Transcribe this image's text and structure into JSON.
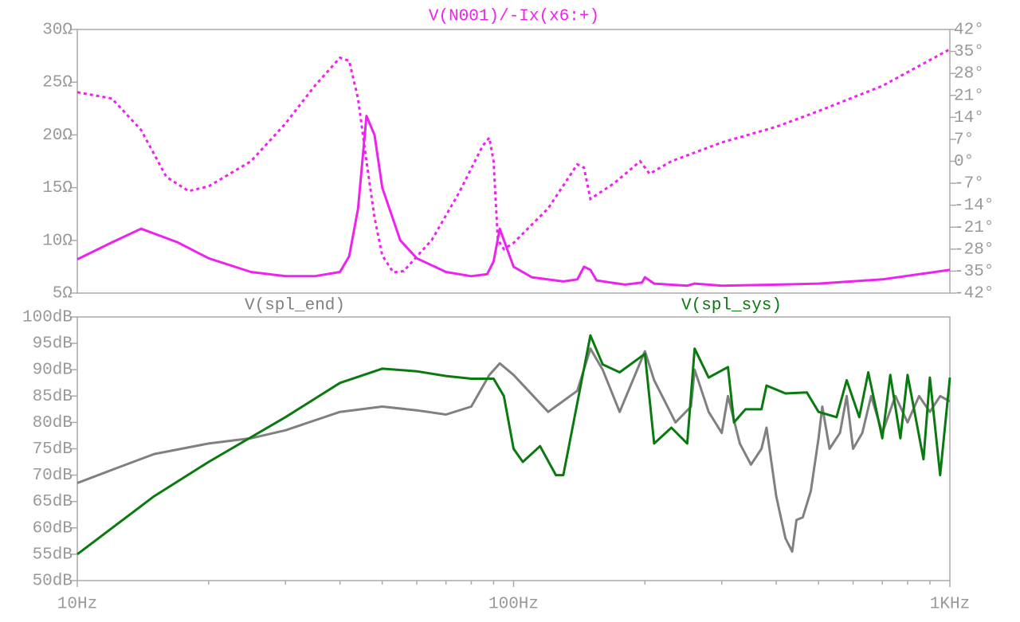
{
  "chart_data": [
    {
      "type": "line",
      "xscale": "log",
      "xlim": [
        10,
        1000
      ],
      "ylim": [
        5,
        30
      ],
      "yticks": [
        {
          "value": 5,
          "label": "5Ω"
        },
        {
          "value": 10,
          "label": "10Ω"
        },
        {
          "value": 15,
          "label": "15Ω"
        },
        {
          "value": 20,
          "label": "20Ω"
        },
        {
          "value": 25,
          "label": "25Ω"
        },
        {
          "value": 30,
          "label": "30Ω"
        }
      ],
      "y2lim": [
        -42,
        42
      ],
      "y2ticks": [
        {
          "value": -42,
          "label": "-42°"
        },
        {
          "value": -35,
          "label": "-35°"
        },
        {
          "value": -28,
          "label": "-28°"
        },
        {
          "value": -21,
          "label": "-21°"
        },
        {
          "value": -14,
          "label": "-14°"
        },
        {
          "value": -7,
          "label": "-7°"
        },
        {
          "value": 0,
          "label": "0°"
        },
        {
          "value": 7,
          "label": "7°"
        },
        {
          "value": 14,
          "label": "14°"
        },
        {
          "value": 21,
          "label": "21°"
        },
        {
          "value": 28,
          "label": "28°"
        },
        {
          "value": 35,
          "label": "35°"
        },
        {
          "value": 42,
          "label": "42°"
        }
      ],
      "series": [
        {
          "name": "V(N001)/-Ix(x6:+)",
          "color": "#ee22ee",
          "x": [
            10,
            12,
            14,
            17,
            20,
            25,
            30,
            35,
            40,
            42,
            44,
            46,
            48,
            50,
            55,
            60,
            70,
            80,
            87,
            90,
            93,
            96,
            100,
            110,
            130,
            140,
            145,
            150,
            155,
            180,
            197,
            200,
            210,
            250,
            260,
            300,
            400,
            500,
            700,
            1000
          ],
          "values": [
            8.2,
            9.8,
            11.1,
            9.8,
            8.3,
            7.0,
            6.6,
            6.6,
            7.0,
            8.5,
            13,
            21.8,
            20,
            15,
            10,
            8.3,
            7.0,
            6.6,
            6.8,
            8,
            11.1,
            9.5,
            7.5,
            6.5,
            6.1,
            6.3,
            7.5,
            7.2,
            6.2,
            5.8,
            6.0,
            6.5,
            5.9,
            5.7,
            5.9,
            5.7,
            5.8,
            5.9,
            6.3,
            7.2
          ],
          "phase_x": [
            10,
            12,
            14,
            16,
            18,
            20,
            25,
            30,
            35,
            40,
            42,
            44,
            46,
            48,
            50,
            53,
            56,
            65,
            75,
            85,
            88,
            90,
            92,
            95,
            100,
            120,
            140,
            145,
            150,
            170,
            195,
            200,
            205,
            230,
            300,
            400,
            500,
            700,
            1000
          ],
          "phase": [
            22,
            20,
            10,
            -5,
            -9.5,
            -8,
            0,
            12,
            24,
            33,
            32,
            20,
            0,
            -18,
            -30,
            -35.4,
            -35,
            -25,
            -10,
            5,
            7.5,
            0,
            -25,
            -28,
            -26,
            -15,
            -1,
            -2,
            -12,
            -7,
            0,
            -2,
            -4,
            0,
            6,
            11,
            16,
            24,
            35.7
          ]
        }
      ]
    },
    {
      "type": "line",
      "xscale": "log",
      "xlim": [
        10,
        1000
      ],
      "xticks": [
        {
          "value": 10,
          "label": "10Hz"
        },
        {
          "value": 100,
          "label": "100Hz"
        },
        {
          "value": 1000,
          "label": "1KHz"
        }
      ],
      "xminorticks": [
        20,
        30,
        40,
        50,
        60,
        70,
        80,
        90,
        200,
        300,
        400,
        500,
        600,
        700,
        800,
        900
      ],
      "ylim": [
        50,
        100
      ],
      "yticks": [
        {
          "value": 50,
          "label": "50dB"
        },
        {
          "value": 55,
          "label": "55dB"
        },
        {
          "value": 60,
          "label": "60dB"
        },
        {
          "value": 65,
          "label": "65dB"
        },
        {
          "value": 70,
          "label": "70dB"
        },
        {
          "value": 75,
          "label": "75dB"
        },
        {
          "value": 80,
          "label": "80dB"
        },
        {
          "value": 85,
          "label": "85dB"
        },
        {
          "value": 90,
          "label": "90dB"
        },
        {
          "value": 95,
          "label": "95dB"
        },
        {
          "value": 100,
          "label": "100dB"
        }
      ],
      "series": [
        {
          "name": "V(spl_end)",
          "color": "#808080",
          "x": [
            10,
            12,
            15,
            20,
            25,
            30,
            40,
            50,
            60,
            70,
            80,
            88,
            93,
            100,
            120,
            140,
            150,
            160,
            175,
            200,
            210,
            235,
            255,
            260,
            280,
            300,
            310,
            330,
            350,
            370,
            380,
            400,
            420,
            435,
            445,
            460,
            480,
            500,
            510,
            530,
            560,
            580,
            600,
            630,
            660,
            700,
            750,
            800,
            850,
            900,
            950,
            1000
          ],
          "values": [
            68.5,
            71,
            74,
            76,
            77,
            78.5,
            82,
            83,
            82.3,
            81.5,
            83,
            89,
            91.2,
            89,
            82,
            86,
            94,
            90,
            82,
            93.5,
            88,
            80,
            83,
            90,
            82,
            78,
            85,
            76,
            72,
            75,
            79,
            66,
            58,
            55.5,
            61.5,
            62,
            67,
            77,
            83,
            75,
            78,
            85,
            75,
            78,
            85,
            78,
            85,
            80,
            85,
            82,
            85,
            84
          ]
        },
        {
          "name": "V(spl_sys)",
          "color": "#0a7a10",
          "x": [
            10,
            15,
            20,
            30,
            40,
            50,
            60,
            70,
            80,
            90,
            95,
            100,
            105,
            115,
            125,
            130,
            150,
            160,
            175,
            200,
            210,
            230,
            250,
            260,
            280,
            310,
            320,
            340,
            370,
            380,
            420,
            470,
            500,
            550,
            580,
            620,
            650,
            700,
            730,
            770,
            800,
            870,
            900,
            950,
            1000
          ],
          "values": [
            55,
            66,
            72.5,
            81,
            87.5,
            90.2,
            89.7,
            88.8,
            88.3,
            88.3,
            85,
            75,
            72.5,
            75.5,
            70,
            70,
            96.5,
            91,
            89.5,
            93,
            76,
            79,
            76,
            94,
            88.5,
            90.5,
            80,
            82.5,
            82.5,
            87,
            85.5,
            85.7,
            82,
            81,
            88,
            81,
            89.5,
            77,
            89,
            77,
            89,
            73,
            88.5,
            70,
            88.5
          ]
        }
      ]
    }
  ]
}
